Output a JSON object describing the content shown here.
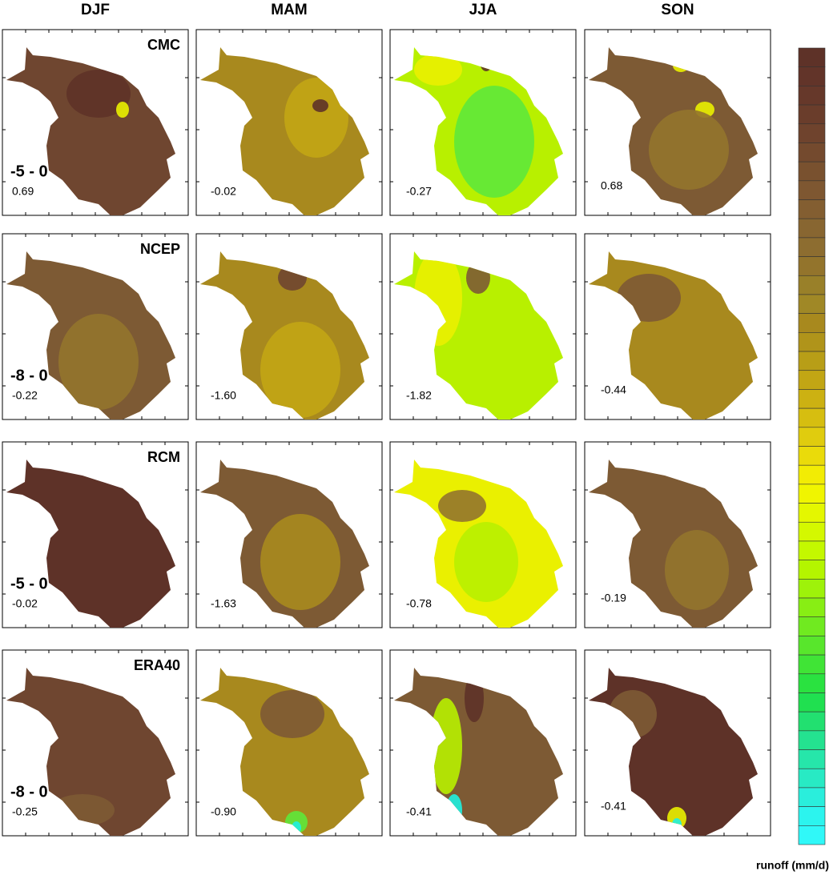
{
  "columns": [
    "DJF",
    "MAM",
    "JJA",
    "SON"
  ],
  "rows": [
    {
      "name": "CMC",
      "range": "-5 - 0",
      "values": [
        "0.69",
        "-0.02",
        "-0.27",
        "0.68"
      ]
    },
    {
      "name": "NCEP",
      "range": "-8 - 0",
      "values": [
        "-0.22",
        "-1.60",
        "-1.82",
        "-0.44"
      ]
    },
    {
      "name": "RCM",
      "range": "-5 - 0",
      "values": [
        "-0.02",
        "-1.63",
        "-0.78",
        "-0.19"
      ]
    },
    {
      "name": "ERA40",
      "range": "-8 - 0",
      "values": [
        "-0.25",
        "-0.90",
        "-0.41",
        "-0.41"
      ]
    }
  ],
  "colorbar": {
    "label": "runoff (mm/d)"
  }
}
